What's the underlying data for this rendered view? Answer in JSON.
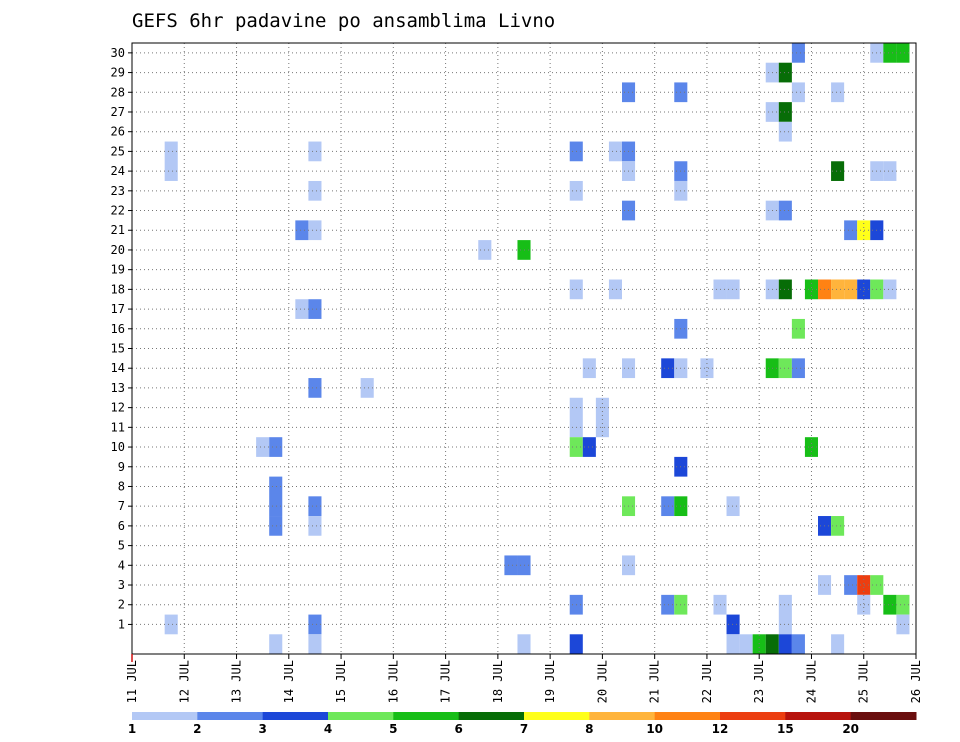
{
  "chart_data": {
    "type": "heatmap",
    "title": "GEFS 6hr padavine po ansamblima Livno",
    "x_tick_labels": [
      "11 JUL",
      "12 JUL",
      "13 JUL",
      "14 JUL",
      "15 JUL",
      "16 JUL",
      "17 JUL",
      "18 JUL",
      "19 JUL",
      "20 JUL",
      "21 JUL",
      "22 JUL",
      "23 JUL",
      "24 JUL",
      "25 JUL",
      "26 JUL"
    ],
    "x_range_days": [
      11,
      26
    ],
    "y_tick_labels": [
      "1",
      "2",
      "3",
      "4",
      "5",
      "6",
      "7",
      "8",
      "9",
      "10",
      "11",
      "12",
      "13",
      "14",
      "15",
      "16",
      "17",
      "18",
      "19",
      "20",
      "21",
      "22",
      "23",
      "24",
      "25",
      "26",
      "27",
      "28",
      "29",
      "30"
    ],
    "y_range": [
      0,
      30
    ],
    "grid": true,
    "colorbar": {
      "labels": [
        "1",
        "2",
        "3",
        "4",
        "5",
        "6",
        "7",
        "8",
        "10",
        "12",
        "15",
        "20"
      ],
      "colors": [
        "#b3c8f5",
        "#5b86ea",
        "#1c47d8",
        "#6ee85a",
        "#17be17",
        "#076d07",
        "#ffff1a",
        "#ffb43c",
        "#ff8213",
        "#ec3e10",
        "#b7130d",
        "#6a0e0e"
      ],
      "placement": "bottom"
    },
    "cells": [
      {
        "x": 11.75,
        "y": [
          24,
          25
        ],
        "l": 1
      },
      {
        "x": 11.75,
        "y": [
          1,
          1
        ],
        "l": 1
      },
      {
        "x": 13.75,
        "y": [
          0,
          0
        ],
        "l": 1
      },
      {
        "x": 13.5,
        "y": [
          10,
          10
        ],
        "l": 1
      },
      {
        "x": 13.75,
        "y": [
          10,
          10
        ],
        "l": 2
      },
      {
        "x": 13.75,
        "y": [
          7,
          8
        ],
        "l": 2
      },
      {
        "x": 13.75,
        "y": [
          6,
          6
        ],
        "l": 2
      },
      {
        "x": 14.25,
        "y": [
          21,
          21
        ],
        "l": 2
      },
      {
        "x": 14.25,
        "y": [
          17,
          17
        ],
        "l": 1
      },
      {
        "x": 14.5,
        "y": [
          25,
          25
        ],
        "l": 1
      },
      {
        "x": 14.5,
        "y": [
          23,
          23
        ],
        "l": 1
      },
      {
        "x": 14.5,
        "y": [
          21,
          21
        ],
        "l": 1
      },
      {
        "x": 14.5,
        "y": [
          17,
          17
        ],
        "l": 2
      },
      {
        "x": 14.5,
        "y": [
          13,
          13
        ],
        "l": 2
      },
      {
        "x": 14.5,
        "y": [
          7,
          7
        ],
        "l": 2
      },
      {
        "x": 14.5,
        "y": [
          6,
          6
        ],
        "l": 1
      },
      {
        "x": 14.5,
        "y": [
          1,
          1
        ],
        "l": 2
      },
      {
        "x": 14.5,
        "y": [
          0,
          0
        ],
        "l": 1
      },
      {
        "x": 15.5,
        "y": [
          13,
          13
        ],
        "l": 1
      },
      {
        "x": 17.75,
        "y": [
          20,
          20
        ],
        "l": 1
      },
      {
        "x": 18.25,
        "y": [
          4,
          4
        ],
        "l": 2
      },
      {
        "x": 18.5,
        "y": [
          4,
          4
        ],
        "l": 2
      },
      {
        "x": 18.5,
        "y": [
          0,
          0
        ],
        "l": 1
      },
      {
        "x": 18.5,
        "y": [
          20,
          20
        ],
        "l": 5
      },
      {
        "x": 19.5,
        "y": [
          25,
          25
        ],
        "l": 2
      },
      {
        "x": 19.5,
        "y": [
          23,
          23
        ],
        "l": 1
      },
      {
        "x": 19.5,
        "y": [
          18,
          18
        ],
        "l": 1
      },
      {
        "x": 19.5,
        "y": [
          11,
          12
        ],
        "l": 1
      },
      {
        "x": 19.5,
        "y": [
          10,
          10
        ],
        "l": 4
      },
      {
        "x": 19.5,
        "y": [
          2,
          2
        ],
        "l": 2
      },
      {
        "x": 19.5,
        "y": [
          0,
          0
        ],
        "l": 3
      },
      {
        "x": 19.75,
        "y": [
          10,
          10
        ],
        "l": 3
      },
      {
        "x": 19.75,
        "y": [
          14,
          14
        ],
        "l": 1
      },
      {
        "x": 20.0,
        "y": [
          11,
          12
        ],
        "l": 1
      },
      {
        "x": 20.25,
        "y": [
          25,
          25
        ],
        "l": 1
      },
      {
        "x": 20.25,
        "y": [
          18,
          18
        ],
        "l": 1
      },
      {
        "x": 20.5,
        "y": [
          28,
          28
        ],
        "l": 2
      },
      {
        "x": 20.5,
        "y": [
          25,
          25
        ],
        "l": 2
      },
      {
        "x": 20.5,
        "y": [
          24,
          24
        ],
        "l": 1
      },
      {
        "x": 20.5,
        "y": [
          22,
          22
        ],
        "l": 2
      },
      {
        "x": 20.5,
        "y": [
          14,
          14
        ],
        "l": 1
      },
      {
        "x": 20.5,
        "y": [
          7,
          7
        ],
        "l": 4
      },
      {
        "x": 20.5,
        "y": [
          4,
          4
        ],
        "l": 1
      },
      {
        "x": 21.25,
        "y": [
          14,
          14
        ],
        "l": 3
      },
      {
        "x": 21.25,
        "y": [
          7,
          7
        ],
        "l": 2
      },
      {
        "x": 21.25,
        "y": [
          2,
          2
        ],
        "l": 2
      },
      {
        "x": 21.5,
        "y": [
          28,
          28
        ],
        "l": 2
      },
      {
        "x": 21.5,
        "y": [
          24,
          24
        ],
        "l": 2
      },
      {
        "x": 21.5,
        "y": [
          23,
          23
        ],
        "l": 1
      },
      {
        "x": 21.5,
        "y": [
          16,
          16
        ],
        "l": 2
      },
      {
        "x": 21.5,
        "y": [
          14,
          14
        ],
        "l": 1
      },
      {
        "x": 21.5,
        "y": [
          9,
          9
        ],
        "l": 3
      },
      {
        "x": 21.5,
        "y": [
          7,
          7
        ],
        "l": 5
      },
      {
        "x": 21.5,
        "y": [
          2,
          2
        ],
        "l": 4
      },
      {
        "x": 22.0,
        "y": [
          14,
          14
        ],
        "l": 1
      },
      {
        "x": 22.25,
        "y": [
          18,
          18
        ],
        "l": 1
      },
      {
        "x": 22.25,
        "y": [
          2,
          2
        ],
        "l": 1
      },
      {
        "x": 22.5,
        "y": [
          18,
          18
        ],
        "l": 1
      },
      {
        "x": 22.5,
        "y": [
          7,
          7
        ],
        "l": 1
      },
      {
        "x": 22.5,
        "y": [
          1,
          1
        ],
        "l": 3
      },
      {
        "x": 22.5,
        "y": [
          0,
          0
        ],
        "l": 1
      },
      {
        "x": 22.75,
        "y": [
          0,
          0
        ],
        "l": 1
      },
      {
        "x": 23.0,
        "y": [
          0,
          0
        ],
        "l": 5
      },
      {
        "x": 23.25,
        "y": [
          29,
          29
        ],
        "l": 1
      },
      {
        "x": 23.25,
        "y": [
          27,
          27
        ],
        "l": 1
      },
      {
        "x": 23.25,
        "y": [
          22,
          22
        ],
        "l": 1
      },
      {
        "x": 23.25,
        "y": [
          18,
          18
        ],
        "l": 1
      },
      {
        "x": 23.25,
        "y": [
          14,
          14
        ],
        "l": 5
      },
      {
        "x": 23.25,
        "y": [
          0,
          0
        ],
        "l": 6
      },
      {
        "x": 23.5,
        "y": [
          29,
          29
        ],
        "l": 6
      },
      {
        "x": 23.5,
        "y": [
          27,
          27
        ],
        "l": 6
      },
      {
        "x": 23.5,
        "y": [
          26,
          26
        ],
        "l": 1
      },
      {
        "x": 23.5,
        "y": [
          22,
          22
        ],
        "l": 2
      },
      {
        "x": 23.5,
        "y": [
          18,
          18
        ],
        "l": 6
      },
      {
        "x": 23.5,
        "y": [
          14,
          14
        ],
        "l": 4
      },
      {
        "x": 23.5,
        "y": [
          1,
          2
        ],
        "l": 1
      },
      {
        "x": 23.5,
        "y": [
          0,
          0
        ],
        "l": 3
      },
      {
        "x": 23.75,
        "y": [
          30,
          30
        ],
        "l": 2
      },
      {
        "x": 23.75,
        "y": [
          28,
          28
        ],
        "l": 1
      },
      {
        "x": 23.75,
        "y": [
          16,
          16
        ],
        "l": 4
      },
      {
        "x": 23.75,
        "y": [
          14,
          14
        ],
        "l": 2
      },
      {
        "x": 23.75,
        "y": [
          0,
          0
        ],
        "l": 2
      },
      {
        "x": 24.0,
        "y": [
          18,
          18
        ],
        "l": 5
      },
      {
        "x": 24.0,
        "y": [
          10,
          10
        ],
        "l": 5
      },
      {
        "x": 24.25,
        "y": [
          18,
          18
        ],
        "l": 9
      },
      {
        "x": 24.25,
        "y": [
          6,
          6
        ],
        "l": 3
      },
      {
        "x": 24.25,
        "y": [
          3,
          3
        ],
        "l": 1
      },
      {
        "x": 24.5,
        "y": [
          28,
          28
        ],
        "l": 1
      },
      {
        "x": 24.5,
        "y": [
          24,
          24
        ],
        "l": 6
      },
      {
        "x": 24.5,
        "y": [
          18,
          18
        ],
        "l": 8
      },
      {
        "x": 24.5,
        "y": [
          6,
          6
        ],
        "l": 4
      },
      {
        "x": 24.5,
        "y": [
          0,
          0
        ],
        "l": 1
      },
      {
        "x": 24.75,
        "y": [
          21,
          21
        ],
        "l": 2
      },
      {
        "x": 24.75,
        "y": [
          18,
          18
        ],
        "l": 8
      },
      {
        "x": 24.75,
        "y": [
          3,
          3
        ],
        "l": 2
      },
      {
        "x": 25.0,
        "y": [
          21,
          21
        ],
        "l": 7
      },
      {
        "x": 25.0,
        "y": [
          18,
          18
        ],
        "l": 3
      },
      {
        "x": 25.0,
        "y": [
          3,
          3
        ],
        "l": 10
      },
      {
        "x": 25.0,
        "y": [
          2,
          2
        ],
        "l": 1
      },
      {
        "x": 25.25,
        "y": [
          30,
          30
        ],
        "l": 1
      },
      {
        "x": 25.25,
        "y": [
          24,
          24
        ],
        "l": 1
      },
      {
        "x": 25.25,
        "y": [
          21,
          21
        ],
        "l": 3
      },
      {
        "x": 25.25,
        "y": [
          18,
          18
        ],
        "l": 4
      },
      {
        "x": 25.25,
        "y": [
          3,
          3
        ],
        "l": 4
      },
      {
        "x": 25.5,
        "y": [
          30,
          30
        ],
        "l": 5
      },
      {
        "x": 25.5,
        "y": [
          24,
          24
        ],
        "l": 1
      },
      {
        "x": 25.5,
        "y": [
          18,
          18
        ],
        "l": 1
      },
      {
        "x": 25.5,
        "y": [
          2,
          2
        ],
        "l": 5
      },
      {
        "x": 25.75,
        "y": [
          30,
          30
        ],
        "l": 5
      },
      {
        "x": 25.75,
        "y": [
          2,
          2
        ],
        "l": 4
      },
      {
        "x": 25.75,
        "y": [
          1,
          1
        ],
        "l": 1
      }
    ]
  }
}
